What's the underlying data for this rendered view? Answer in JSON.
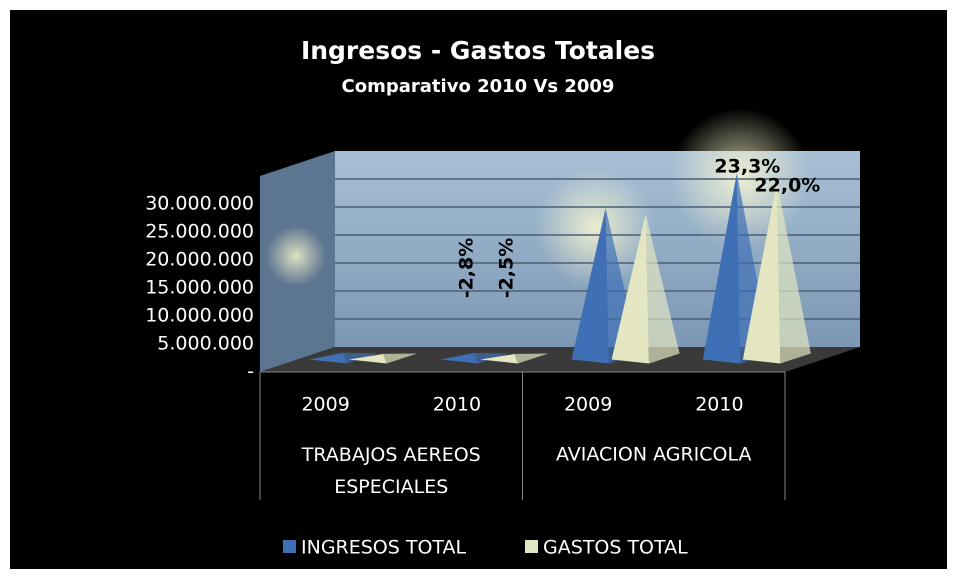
{
  "chart_data": {
    "type": "pyramid3d",
    "title": "Ingresos - Gastos Totales",
    "subtitle": "Comparativo 2010 Vs 2009",
    "categories": [
      "2009",
      "2010",
      "2009",
      "2010"
    ],
    "groups": [
      "TRABAJOS AEREOS ESPECIALES",
      "AVIACION AGRICOLA"
    ],
    "series": [
      {
        "name": "INGRESOS TOTAL",
        "color": "#3f6fb5",
        "values": [
          1200000,
          1166000,
          27000000,
          33300000
        ],
        "change_labels": [
          null,
          "-2,8%",
          null,
          "23,3%"
        ]
      },
      {
        "name": "GASTOS TOTAL",
        "color": "#e3e6c0",
        "values": [
          1000000,
          975000,
          26000000,
          31700000
        ],
        "change_labels": [
          null,
          "-2,5%",
          null,
          "22,0%"
        ]
      }
    ],
    "ylim": [
      0,
      35000000
    ],
    "yticks": [
      {
        "value": 0,
        "label": "-"
      },
      {
        "value": 5000000,
        "label": "5.000.000"
      },
      {
        "value": 10000000,
        "label": "10.000.000"
      },
      {
        "value": 15000000,
        "label": "15.000.000"
      },
      {
        "value": 20000000,
        "label": "20.000.000"
      },
      {
        "value": 25000000,
        "label": "25.000.000"
      },
      {
        "value": 30000000,
        "label": "30.000.000"
      }
    ],
    "grid": true,
    "legend": "bottom"
  }
}
